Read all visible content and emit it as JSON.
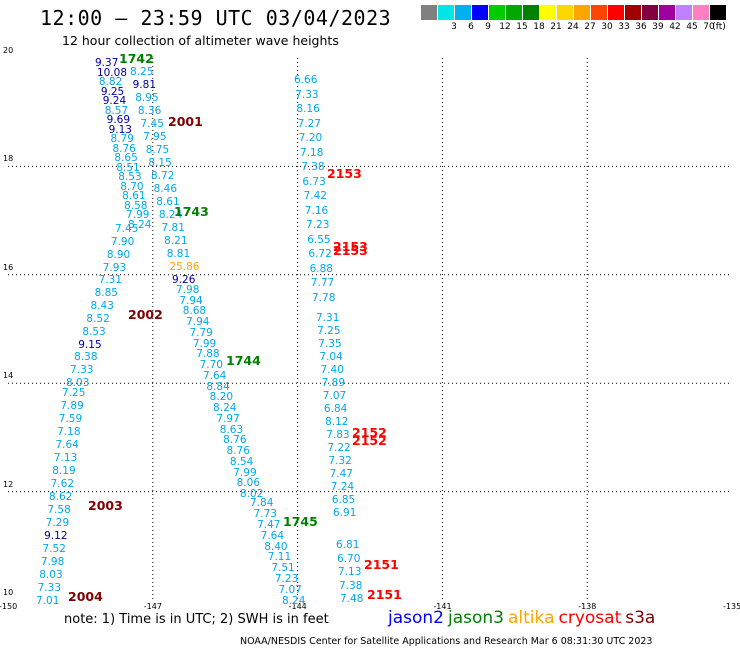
{
  "title": "12:00 – 23:59 UTC 03/04/2023",
  "subtitle": "12 hour collection of altimeter wave heights",
  "scale": {
    "unit": "(ft)",
    "colors": [
      "#808080",
      "#00e5e5",
      "#00b0f0",
      "#0000ff",
      "#00cc00",
      "#00a800",
      "#008000",
      "#ffff00",
      "#ffd700",
      "#ffa500",
      "#ff4500",
      "#ff0000",
      "#a00000",
      "#800040",
      "#a000a0",
      "#c080ff",
      "#ff80c0",
      "#000000"
    ],
    "labels": [
      "",
      "3",
      "6",
      "9",
      "12",
      "15",
      "18",
      "21",
      "24",
      "27",
      "30",
      "33",
      "36",
      "39",
      "42",
      "45",
      "70",
      ""
    ]
  },
  "axes": {
    "x_ticks": [
      "-150",
      "-147",
      "-144",
      "-141",
      "-138",
      "-135"
    ],
    "y_ticks": [
      "20",
      "18",
      "16",
      "14",
      "12",
      "10"
    ]
  },
  "chart_data": {
    "type": "scatter",
    "xlim": [
      -150,
      -135
    ],
    "ylim": [
      10,
      20
    ],
    "grid": true,
    "tracks": [
      {
        "pass": "2001",
        "satellite": "cryosat",
        "values": [
          "9.37",
          "10.08",
          "8.82",
          "9.25",
          "9.24",
          "8.57",
          "9.69",
          "9.13",
          "8.79",
          "8.76",
          "8.65",
          "8.51",
          "8.53",
          "8.70",
          "8.61",
          "8.58",
          "7.99",
          "8.24"
        ]
      },
      {
        "pass": "2002",
        "satellite": "cryosat",
        "values": [
          "7.45",
          "7.90",
          "8.90",
          "7.93",
          "7.31",
          "8.85",
          "8.43",
          "8.52",
          "8.53",
          "9.15",
          "8.38",
          "7.33",
          "8.03"
        ]
      },
      {
        "pass": "2003",
        "satellite": "cryosat",
        "values": [
          "7.25",
          "7.89",
          "7.59",
          "7.18",
          "7.64",
          "7.13",
          "8.19",
          "7.62",
          "8.62",
          "7.58",
          "7.29",
          "9.12",
          "7.52",
          "7.98",
          "8.03",
          "7.33",
          "7.01"
        ]
      },
      {
        "pass": "1742",
        "satellite": "jason3",
        "values": [
          "8.25",
          "9.81",
          "8.95",
          "8.36",
          "7.45",
          "7.95",
          "8.75",
          "8.15",
          "8.72",
          "8.46",
          "8.61",
          "8.24",
          "7.81",
          "8.21",
          "8.81",
          "25.86",
          "9.26"
        ]
      },
      {
        "pass": "1743",
        "satellite": "jason3",
        "values": [
          "7.98",
          "7.94",
          "8.68",
          "7.94",
          "7.79",
          "7.99",
          "7.88",
          "7.70",
          "7.64",
          "8.84",
          "8.20",
          "8.24",
          "7.97",
          "8.63",
          "8.76",
          "8.76",
          "8.54",
          "7.99",
          "8.06",
          "8.02"
        ]
      },
      {
        "pass": "1744",
        "satellite": "jason3",
        "values": [
          "7.84",
          "7.73",
          "7.47",
          "7.64",
          "8.40",
          "7.11",
          "7.51",
          "7.23",
          "7.07",
          "8.24"
        ]
      },
      {
        "pass": "2153",
        "satellite": "cryosat",
        "values": [
          "6.66",
          "7.33",
          "8.16",
          "7.27",
          "7.20",
          "7.18",
          "7.38",
          "6.73",
          "7.42",
          "7.16",
          "7.23",
          "6.55",
          "6.72",
          "6.88",
          "7.77",
          "7.78"
        ]
      },
      {
        "pass": "2152",
        "satellite": "cryosat",
        "values": [
          "7.31",
          "7.25",
          "7.35",
          "7.04",
          "7.40",
          "7.89",
          "7.07",
          "6.84",
          "8.12",
          "7.83",
          "7.22",
          "7.32",
          "7.47",
          "7.24",
          "6.85",
          "6.91"
        ]
      },
      {
        "pass": "2151",
        "satellite": "cryosat",
        "values": [
          "6.81",
          "6.70",
          "7.13",
          "7.38",
          "7.48"
        ]
      }
    ],
    "pass_labels": [
      {
        "text": "1742",
        "color": "#008000"
      },
      {
        "text": "2001",
        "color": "#800000"
      },
      {
        "text": "2153",
        "color": "#ff0000"
      },
      {
        "text": "1743",
        "color": "#008000"
      },
      {
        "text": "2153",
        "color": "#ff0000"
      },
      {
        "text": "2153",
        "color": "#ff0000"
      },
      {
        "text": "2002",
        "color": "#800000"
      },
      {
        "text": "1744",
        "color": "#008000"
      },
      {
        "text": "2152",
        "color": "#ff0000"
      },
      {
        "text": "2152",
        "color": "#ff0000"
      },
      {
        "text": "2003",
        "color": "#800000"
      },
      {
        "text": "1745",
        "color": "#008000"
      },
      {
        "text": "2151",
        "color": "#ff0000"
      },
      {
        "text": "2004",
        "color": "#800000"
      },
      {
        "text": "2151",
        "color": "#ff0000"
      }
    ]
  },
  "note": "note:  1) Time is in UTC; 2) SWH is in feet",
  "legend": [
    {
      "name": "jason2",
      "color": "#0000ff"
    },
    {
      "name": "jason3",
      "color": "#008000"
    },
    {
      "name": "altika",
      "color": "#ffa500"
    },
    {
      "name": "cryosat",
      "color": "#ff0000"
    },
    {
      "name": "s3a",
      "color": "#800000"
    }
  ],
  "credit": "NOAA/NESDIS Center for Satellite Applications and Research    Mar  6 08:31:30 UTC 2023"
}
